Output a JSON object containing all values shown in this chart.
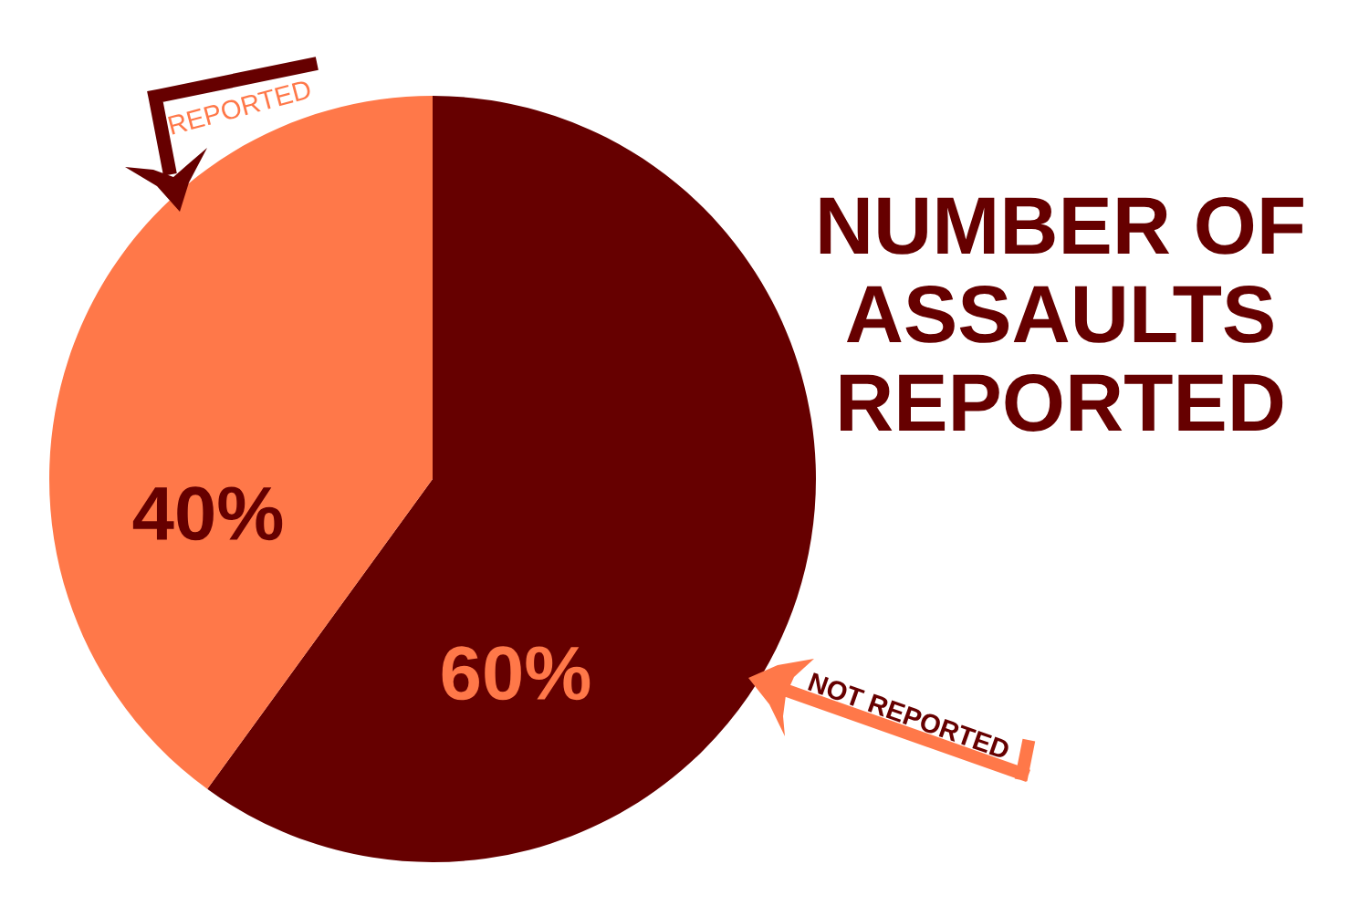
{
  "chart_data": {
    "type": "pie",
    "title": "NUMBER OF\nASSAULTS\nREPORTED",
    "categories": [
      "NOT REPORTED",
      "REPORTED"
    ],
    "values": [
      60,
      40
    ],
    "colors": [
      "#660000",
      "#ff7849"
    ],
    "value_labels": [
      "60%",
      "40%"
    ]
  }
}
